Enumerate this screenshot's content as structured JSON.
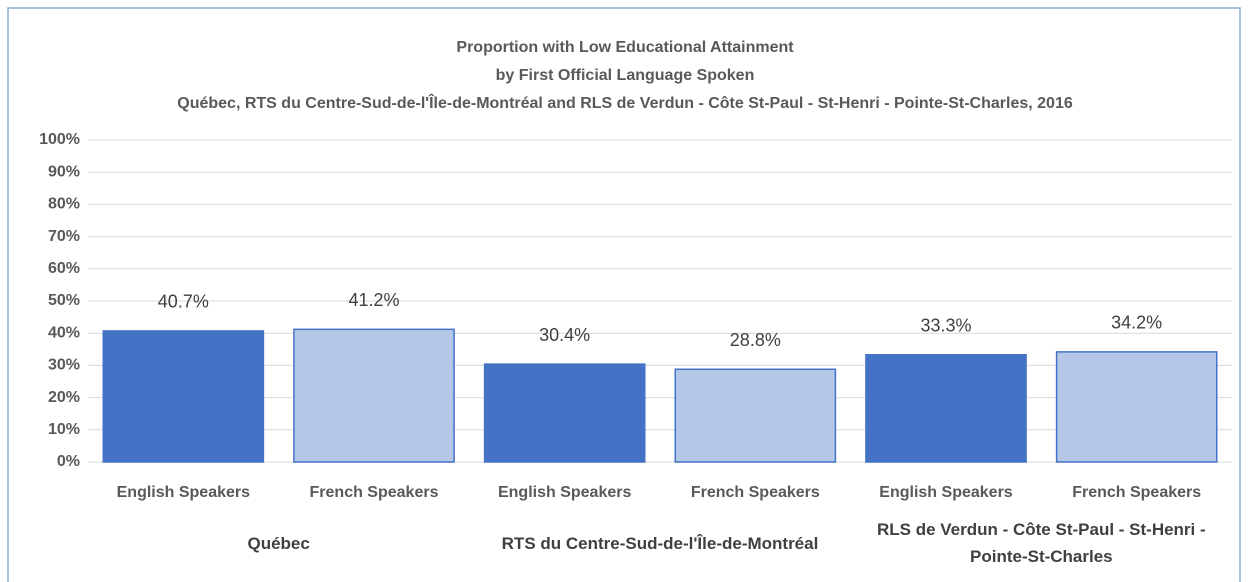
{
  "chart_data": {
    "type": "bar",
    "title": [
      "Proportion with Low Educational Attainment",
      "by First Official Language Spoken",
      "Québec, RTS du Centre-Sud-de-l'Île-de-Montréal and RLS de Verdun - Côte St-Paul - St-Henri - Pointe-St-Charles, 2016"
    ],
    "categories": [
      "English Speakers",
      "French Speakers",
      "English Speakers",
      "French Speakers",
      "English Speakers",
      "French Speakers"
    ],
    "groups": [
      "Québec",
      "RTS du Centre-Sud-de-l'Île-de-Montréal",
      "RLS de Verdun - Côte St-Paul - St-Henri - Pointe-St-Charles"
    ],
    "values": [
      40.7,
      41.2,
      30.4,
      28.8,
      33.3,
      34.2
    ],
    "value_labels": [
      "40.7%",
      "41.2%",
      "30.4%",
      "28.8%",
      "33.3%",
      "34.2%"
    ],
    "colors": [
      "#4472c4",
      "#b4c7e7",
      "#4472c4",
      "#b4c7e7",
      "#4472c4",
      "#b4c7e7"
    ],
    "ylim": [
      0,
      100
    ],
    "yticks": [
      {
        "value": 0,
        "label": "0%"
      },
      {
        "value": 10,
        "label": "10%"
      },
      {
        "value": 20,
        "label": "20%"
      },
      {
        "value": 30,
        "label": "30%"
      },
      {
        "value": 40,
        "label": "40%"
      },
      {
        "value": 50,
        "label": "50%"
      },
      {
        "value": 60,
        "label": "60%"
      },
      {
        "value": 70,
        "label": "70%"
      },
      {
        "value": 80,
        "label": "80%"
      },
      {
        "value": 90,
        "label": "90%"
      },
      {
        "value": 100,
        "label": "100%"
      }
    ],
    "grid": true
  }
}
